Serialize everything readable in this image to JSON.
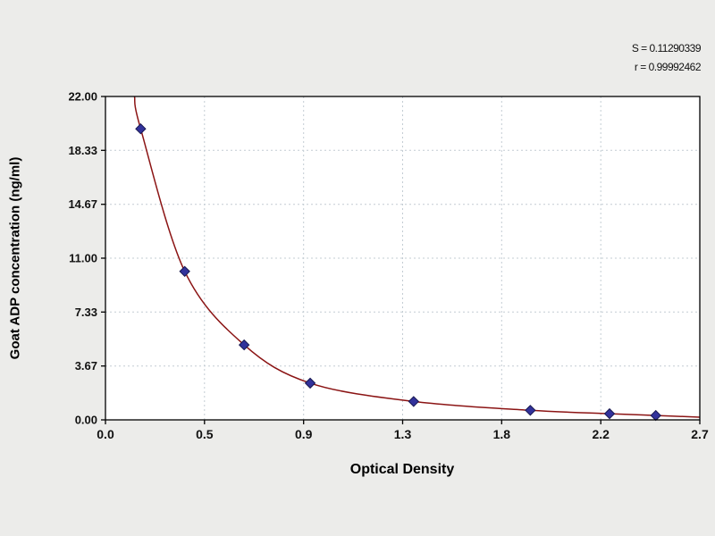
{
  "annotations": {
    "s_label": "S = 0.11290339",
    "r_label": "r = 0.99992462"
  },
  "chart_data": {
    "type": "scatter",
    "title": "",
    "xlabel": "Optical Density",
    "ylabel": "Goat ADP concentration (ng/ml)",
    "xlim": [
      0.0,
      2.7
    ],
    "ylim": [
      0.0,
      22.0
    ],
    "grid": true,
    "x_ticks": [
      0,
      0.45,
      0.9,
      1.35,
      1.8,
      2.25,
      2.7
    ],
    "x_tick_labels": [
      "0.0",
      "0.5",
      "0.9",
      "1.3",
      "1.8",
      "2.2",
      "2.7"
    ],
    "y_ticks": [
      0,
      3.667,
      7.333,
      11,
      14.667,
      18.333,
      22
    ],
    "y_tick_labels": [
      "0.00",
      "3.67",
      "7.33",
      "11.00",
      "14.67",
      "18.33",
      "22.00"
    ],
    "points": [
      [
        0.16,
        19.8
      ],
      [
        0.36,
        10.1
      ],
      [
        0.63,
        5.1
      ],
      [
        0.93,
        2.5
      ],
      [
        1.4,
        1.25
      ],
      [
        1.93,
        0.65
      ],
      [
        2.29,
        0.42
      ],
      [
        2.5,
        0.3
      ]
    ],
    "curve_extension": {
      "left": [
        0.132,
        22.0
      ],
      "right": [
        2.7,
        0.18
      ]
    },
    "legend": "none",
    "colors": {
      "curve": "#8b1414",
      "point_fill": "#32329b",
      "point_edge": "#17174f",
      "grid": "#c3ccd3",
      "axis": "#000000",
      "plot_background": "#ffffff",
      "page_background": "#ececea",
      "text": "#111111"
    }
  }
}
